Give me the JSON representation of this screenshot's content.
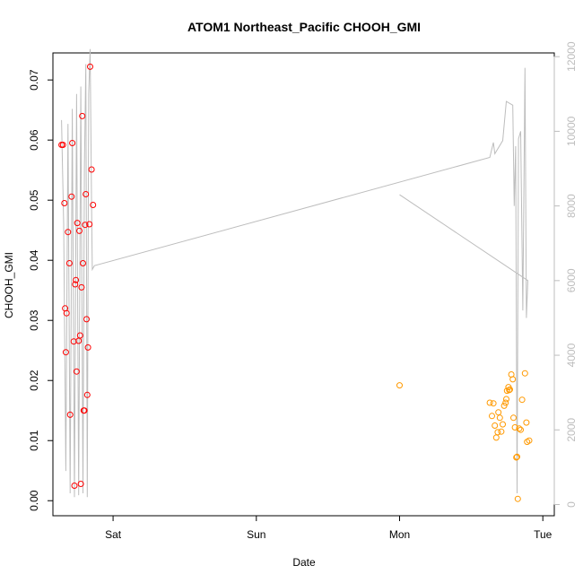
{
  "chart_data": {
    "type": "scatter",
    "title": "ATOM1 Northeast_Pacific CHOOH_GMI",
    "xlabel": "Date",
    "ylabel": "CHOOH_GMI",
    "x_ticks": [
      {
        "label": "Sat",
        "x": 0.0
      },
      {
        "label": "Sun",
        "x": 1.0
      },
      {
        "label": "Mon",
        "x": 2.0
      },
      {
        "label": "Tue",
        "x": 3.0
      }
    ],
    "xlim": [
      -0.42,
      3.08
    ],
    "ylim": [
      -0.0025,
      0.0745
    ],
    "y_ticks": [
      0.0,
      0.01,
      0.02,
      0.03,
      0.04,
      0.05,
      0.06,
      0.07
    ],
    "y_tick_labels": [
      "0.00",
      "0.01",
      "0.02",
      "0.03",
      "0.04",
      "0.05",
      "0.06",
      "0.07"
    ],
    "y2lim": [
      -300,
      12100
    ],
    "y2_ticks": [
      0,
      2000,
      4000,
      6000,
      8000,
      10000,
      12000
    ],
    "y2_tick_labels": [
      "0",
      "2000",
      "4000",
      "6000",
      "8000",
      "10000",
      "12000"
    ],
    "colors": {
      "series1": "#ff0000",
      "series2": "#ff9900",
      "altitude_line": "#bdbdbd",
      "axis": "#000000",
      "right_axis": "#bdbdbd"
    },
    "series": [
      {
        "points": [
          {
            "x": -0.36,
            "y": 0.0592
          },
          {
            "x": -0.35,
            "y": 0.0592
          },
          {
            "x": -0.34,
            "y": 0.0495
          },
          {
            "x": -0.335,
            "y": 0.032
          },
          {
            "x": -0.33,
            "y": 0.0247
          },
          {
            "x": -0.325,
            "y": 0.0312
          },
          {
            "x": -0.315,
            "y": 0.0447
          },
          {
            "x": -0.305,
            "y": 0.0395
          },
          {
            "x": -0.3,
            "y": 0.0143
          },
          {
            "x": -0.29,
            "y": 0.0506
          },
          {
            "x": -0.285,
            "y": 0.0595
          },
          {
            "x": -0.275,
            "y": 0.0265
          },
          {
            "x": -0.27,
            "y": 0.0025
          },
          {
            "x": -0.265,
            "y": 0.036
          },
          {
            "x": -0.26,
            "y": 0.0367
          },
          {
            "x": -0.255,
            "y": 0.0215
          },
          {
            "x": -0.25,
            "y": 0.0462
          },
          {
            "x": -0.24,
            "y": 0.0266
          },
          {
            "x": -0.235,
            "y": 0.0449
          },
          {
            "x": -0.23,
            "y": 0.0275
          },
          {
            "x": -0.225,
            "y": 0.0028
          },
          {
            "x": -0.22,
            "y": 0.0355
          },
          {
            "x": -0.215,
            "y": 0.064
          },
          {
            "x": -0.21,
            "y": 0.0395
          },
          {
            "x": -0.205,
            "y": 0.015
          },
          {
            "x": -0.2,
            "y": 0.015
          },
          {
            "x": -0.195,
            "y": 0.0459
          },
          {
            "x": -0.19,
            "y": 0.051
          },
          {
            "x": -0.185,
            "y": 0.0302
          },
          {
            "x": -0.18,
            "y": 0.0176
          },
          {
            "x": -0.175,
            "y": 0.0255
          },
          {
            "x": -0.165,
            "y": 0.046
          },
          {
            "x": -0.16,
            "y": 0.0722
          },
          {
            "x": -0.15,
            "y": 0.0551
          },
          {
            "x": -0.14,
            "y": 0.0492
          }
        ]
      },
      {
        "points": [
          {
            "x": 2.0,
            "y": 0.0192
          },
          {
            "x": 2.63,
            "y": 0.0163
          },
          {
            "x": 2.645,
            "y": 0.0141
          },
          {
            "x": 2.655,
            "y": 0.0162
          },
          {
            "x": 2.665,
            "y": 0.0125
          },
          {
            "x": 2.675,
            "y": 0.0105
          },
          {
            "x": 2.685,
            "y": 0.0114
          },
          {
            "x": 2.69,
            "y": 0.0147
          },
          {
            "x": 2.7,
            "y": 0.0138
          },
          {
            "x": 2.71,
            "y": 0.0115
          },
          {
            "x": 2.72,
            "y": 0.0127
          },
          {
            "x": 2.73,
            "y": 0.0158
          },
          {
            "x": 2.74,
            "y": 0.0163
          },
          {
            "x": 2.745,
            "y": 0.0169
          },
          {
            "x": 2.75,
            "y": 0.0183
          },
          {
            "x": 2.76,
            "y": 0.0189
          },
          {
            "x": 2.765,
            "y": 0.0184
          },
          {
            "x": 2.77,
            "y": 0.0185
          },
          {
            "x": 2.78,
            "y": 0.021
          },
          {
            "x": 2.79,
            "y": 0.0202
          },
          {
            "x": 2.795,
            "y": 0.0138
          },
          {
            "x": 2.805,
            "y": 0.0122
          },
          {
            "x": 2.815,
            "y": 0.0072
          },
          {
            "x": 2.82,
            "y": 0.0073
          },
          {
            "x": 2.825,
            "y": 0.0003
          },
          {
            "x": 2.835,
            "y": 0.012
          },
          {
            "x": 2.845,
            "y": 0.0118
          },
          {
            "x": 2.855,
            "y": 0.0168
          },
          {
            "x": 2.875,
            "y": 0.0212
          },
          {
            "x": 2.885,
            "y": 0.013
          },
          {
            "x": 2.89,
            "y": 0.0098
          },
          {
            "x": 2.905,
            "y": 0.01
          }
        ]
      }
    ],
    "altitude_track": [
      {
        "x": -0.36,
        "y2": 10300
      },
      {
        "x": -0.345,
        "y2": 7500
      },
      {
        "x": -0.33,
        "y2": 900
      },
      {
        "x": -0.315,
        "y2": 10200
      },
      {
        "x": -0.3,
        "y2": 300
      },
      {
        "x": -0.285,
        "y2": 10600
      },
      {
        "x": -0.27,
        "y2": 200
      },
      {
        "x": -0.255,
        "y2": 11000
      },
      {
        "x": -0.24,
        "y2": 250
      },
      {
        "x": -0.225,
        "y2": 11200
      },
      {
        "x": -0.21,
        "y2": 300
      },
      {
        "x": -0.2,
        "y2": 9000
      },
      {
        "x": -0.19,
        "y2": 11800
      },
      {
        "x": -0.18,
        "y2": 200
      },
      {
        "x": -0.17,
        "y2": 11000
      },
      {
        "x": -0.16,
        "y2": 12200
      },
      {
        "x": -0.15,
        "y2": 8000
      },
      {
        "x": -0.145,
        "y2": 6300
      },
      {
        "x": -0.13,
        "y2": 6400
      },
      {
        "x": 2.63,
        "y2": 9300
      },
      {
        "x": 2.655,
        "y2": 9700
      },
      {
        "x": 2.665,
        "y2": 9400
      },
      {
        "x": 2.72,
        "y2": 9750
      },
      {
        "x": 2.745,
        "y2": 10800
      },
      {
        "x": 2.79,
        "y2": 10700
      },
      {
        "x": 2.8,
        "y2": 8000
      },
      {
        "x": 2.81,
        "y2": 9600
      },
      {
        "x": 2.82,
        "y2": 300
      },
      {
        "x": 2.83,
        "y2": 9800
      },
      {
        "x": 2.845,
        "y2": 10000
      },
      {
        "x": 2.86,
        "y2": 5200
      },
      {
        "x": 2.875,
        "y2": 11700
      },
      {
        "x": 2.885,
        "y2": 5000
      },
      {
        "x": 2.895,
        "y2": 6000
      },
      {
        "x": 2.0,
        "y2": 8300
      }
    ]
  }
}
